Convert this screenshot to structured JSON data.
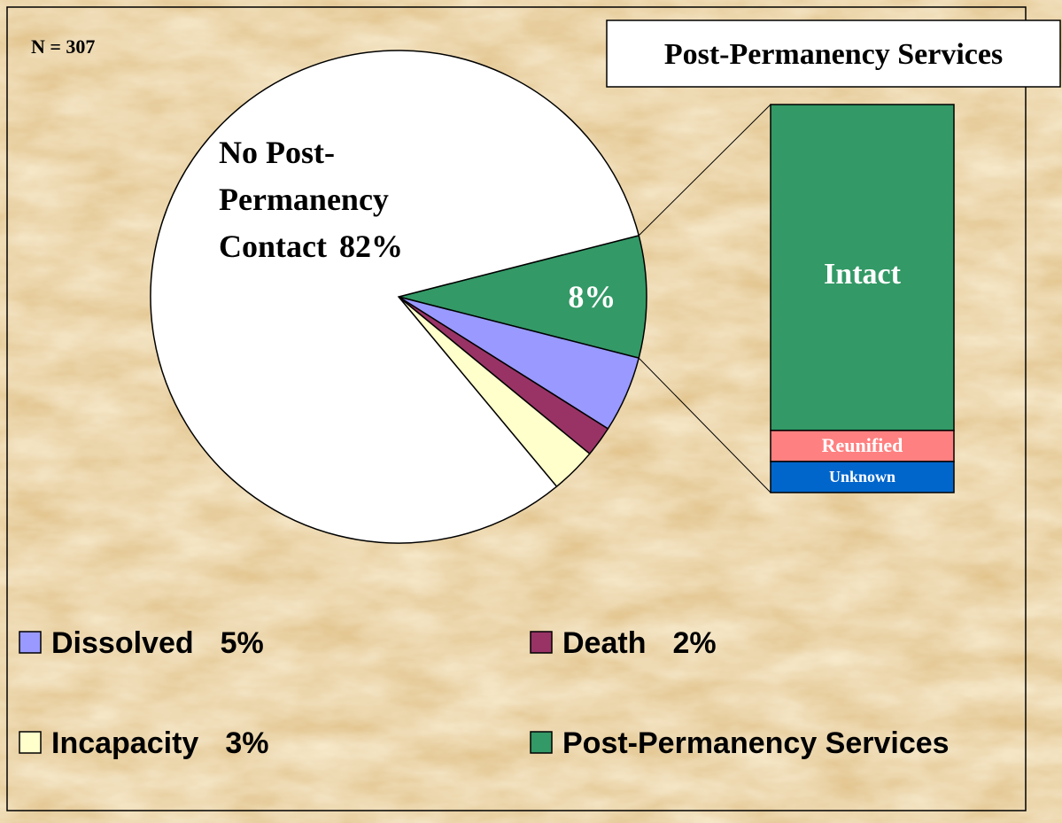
{
  "chart_data": {
    "type": "pie",
    "note": "N = 307",
    "categories": [
      "Post-Permanency Services",
      "Dissolved",
      "Death",
      "Incapacity",
      null
    ],
    "values": [
      8,
      5,
      2,
      3,
      82
    ],
    "value_labels": [
      "8%",
      "5%",
      "2%",
      "3%",
      "82%"
    ],
    "colors": [
      "#339966",
      "#9999ff",
      "#993366",
      "#ffffcc",
      "#ffffff"
    ],
    "label_lines": [
      "No Post-",
      "Permanency",
      "Contact"
    ],
    "bar": {
      "title": "Post-Permanency Services",
      "categories": [
        "Intact",
        "Reunified",
        "Unknown"
      ],
      "values": [
        84,
        8,
        8
      ],
      "colors": [
        "#339966",
        "#ff8080",
        "#0066cc"
      ]
    }
  }
}
